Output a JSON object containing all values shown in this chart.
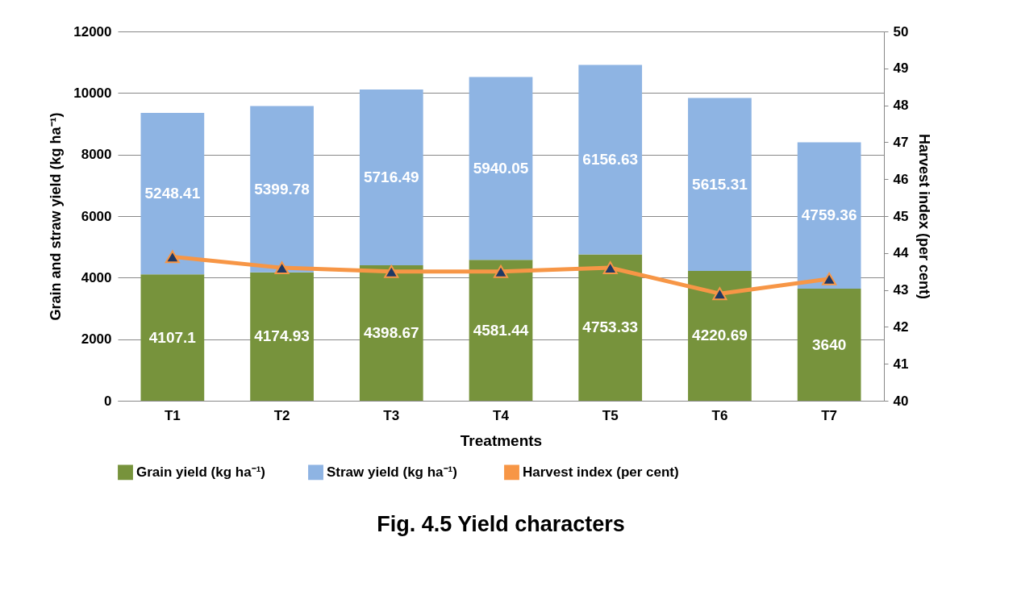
{
  "chart_data": {
    "type": "bar",
    "title": "Fig. 4.5 Yield characters",
    "xlabel": "Treatments",
    "ylabel": "Grain and straw yield (kg ha⁻¹)",
    "y2label": "Harvest index (per cent)",
    "categories": [
      "T1",
      "T2",
      "T3",
      "T4",
      "T5",
      "T6",
      "T7"
    ],
    "stacked": true,
    "grid": "y",
    "legend": "bottom",
    "marker": "triangle",
    "ylim": [
      0,
      12000
    ],
    "yticks": [
      0,
      2000,
      4000,
      6000,
      8000,
      10000,
      12000
    ],
    "y2lim": [
      40,
      50
    ],
    "y2ticks": [
      40,
      41,
      42,
      43,
      44,
      45,
      46,
      47,
      48,
      49,
      50
    ],
    "series": [
      {
        "name": "Grain yield (kg ha⁻¹)",
        "color": "#77933c",
        "values": [
          4107.1,
          4174.93,
          4398.67,
          4581.44,
          4753.33,
          4220.69,
          3640
        ],
        "value_labels": [
          "4107.1",
          "4174.93",
          "4398.67",
          "4581.44",
          "4753.33",
          "4220.69",
          "3640"
        ]
      },
      {
        "name": "Straw yield  (kg ha⁻¹)",
        "color": "#8eb4e3",
        "values": [
          5248.41,
          5399.78,
          5716.49,
          5940.05,
          6156.63,
          5615.31,
          4759.36
        ],
        "value_labels": [
          "5248.41",
          "5399.78",
          "5716.49",
          "5940.05",
          "6156.63",
          "5615.31",
          "4759.36"
        ]
      },
      {
        "name": "Harvest index (per cent)",
        "type": "line",
        "axis": "y2",
        "color": "#f79646",
        "values": [
          43.9,
          43.6,
          43.5,
          43.5,
          43.6,
          42.9,
          43.3
        ]
      }
    ]
  }
}
